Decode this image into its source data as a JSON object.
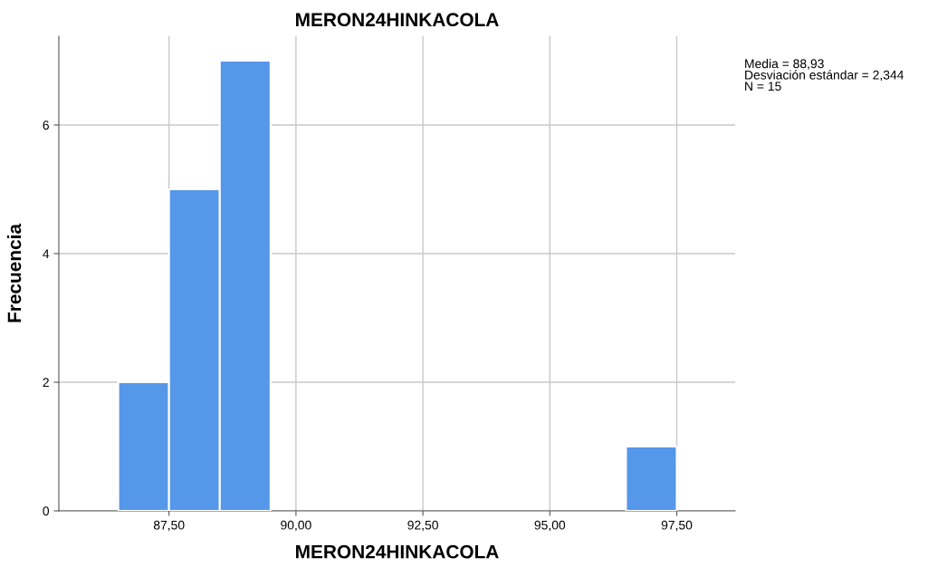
{
  "chart_data": {
    "type": "histogram",
    "title": "MERON24HINKACOLA",
    "xlabel": "MERON24HINKACOLA",
    "ylabel": "Frecuencia",
    "bins": [
      86.5,
      87.5,
      88.5,
      89.5,
      90.5,
      91.5,
      92.5,
      93.5,
      94.5,
      95.5,
      96.5,
      97.5
    ],
    "values": [
      2,
      5,
      7,
      0,
      0,
      0,
      0,
      0,
      0,
      0,
      1
    ],
    "color": "#5597e8",
    "xlim": [
      85.33,
      98.65
    ],
    "xticks": [
      {
        "value": 87.5,
        "label": "87,50"
      },
      {
        "value": 90,
        "label": "90,00"
      },
      {
        "value": 92.5,
        "label": "92,50"
      },
      {
        "value": 95,
        "label": "95,00"
      },
      {
        "value": 97.5,
        "label": "97,50"
      }
    ],
    "ylim": [
      0,
      7.38
    ],
    "yticks": [
      0,
      2,
      4,
      6
    ],
    "grid": true,
    "annotations": [
      "Media = 88,93\nDesviación estándar = 2,344\nN = 15"
    ]
  }
}
